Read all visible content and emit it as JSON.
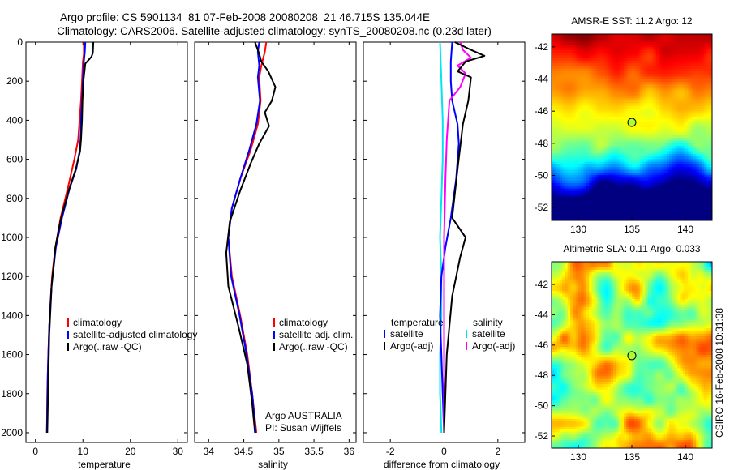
{
  "title": {
    "line1": "Argo profile: CS 5901134_81 07-Feb-2008 20080208_21 46.715S 135.044E",
    "line2": "Climatology: CARS2006. Satellite-adjusted climatology: synTS_20080208.nc (0.23d later)"
  },
  "credit": "CSIRO 16-Feb-2008 10:31:38",
  "colors": {
    "clim": "#ff0000",
    "sat": "#0000ff",
    "argo": "#000000",
    "cyan": "#00e5ee",
    "magenta": "#ff00ff"
  },
  "chart_data": [
    {
      "id": "temperature",
      "type": "line",
      "xlabel": "temperature",
      "ylabel": "",
      "xlim": [
        -2,
        32
      ],
      "ylim": [
        2050,
        0
      ],
      "xticks": [
        0,
        10,
        20,
        30
      ],
      "yticks": [
        0,
        200,
        400,
        600,
        800,
        1000,
        1200,
        1400,
        1600,
        1800,
        2000
      ],
      "legend": [
        "climatology",
        "satellite-adjusted climatology",
        "Argo(..raw -QC)"
      ],
      "series": [
        {
          "role": "clim",
          "x": [
            10.2,
            10.2,
            10.0,
            9.8,
            9.6,
            9.3,
            9.0,
            8.2,
            6.8,
            5.3,
            4.2,
            3.5,
            3.0,
            2.7,
            2.5,
            2.4
          ],
          "y": [
            0,
            60,
            100,
            200,
            300,
            400,
            500,
            600,
            750,
            900,
            1050,
            1200,
            1400,
            1600,
            1800,
            2000
          ]
        },
        {
          "role": "sat",
          "x": [
            10.5,
            10.4,
            10.2,
            10.0,
            9.8,
            9.6,
            9.5,
            9.3,
            8.6,
            7.2,
            5.6,
            4.3,
            3.4,
            2.9,
            2.6,
            2.4
          ],
          "y": [
            0,
            50,
            100,
            200,
            300,
            400,
            500,
            560,
            650,
            750,
            900,
            1050,
            1250,
            1450,
            1700,
            2000
          ]
        },
        {
          "role": "argo",
          "x": [
            12.2,
            12.1,
            11.8,
            10.5,
            10.1,
            9.9,
            9.8,
            9.6,
            9.4,
            8.5,
            7.0,
            5.4,
            4.2,
            3.4,
            2.9,
            2.5
          ],
          "y": [
            0,
            55,
            75,
            110,
            200,
            300,
            400,
            500,
            560,
            650,
            760,
            900,
            1050,
            1250,
            1500,
            2000
          ]
        }
      ]
    },
    {
      "id": "salinity",
      "type": "line",
      "xlabel": "salinity",
      "ylabel": "",
      "xlim": [
        33.8,
        36.1
      ],
      "ylim": [
        2050,
        0
      ],
      "xticks": [
        34,
        34.5,
        35,
        35.5,
        36
      ],
      "yticks": [],
      "legend": [
        "climatology",
        "satellite adj. clim.",
        "Argo(..raw -QC)"
      ],
      "annotation": [
        "Argo AUSTRALIA",
        "PI: Susan Wijffels"
      ],
      "series": [
        {
          "role": "clim",
          "x": [
            34.82,
            34.8,
            34.75,
            34.72,
            34.74,
            34.7,
            34.6,
            34.45,
            34.33,
            34.28,
            34.33,
            34.45,
            34.55,
            34.62,
            34.68
          ],
          "y": [
            0,
            50,
            120,
            180,
            300,
            420,
            550,
            700,
            850,
            1000,
            1200,
            1400,
            1600,
            1800,
            2000
          ]
        },
        {
          "role": "sat",
          "x": [
            34.72,
            34.7,
            34.72,
            34.7,
            34.73,
            34.68,
            34.58,
            34.45,
            34.33,
            34.28,
            34.32,
            34.44,
            34.54,
            34.62,
            34.67
          ],
          "y": [
            0,
            50,
            120,
            180,
            300,
            420,
            550,
            700,
            850,
            1000,
            1200,
            1400,
            1600,
            1800,
            2000
          ]
        },
        {
          "role": "argo",
          "x": [
            34.66,
            34.72,
            34.75,
            34.85,
            34.95,
            34.9,
            34.8,
            34.86,
            34.72,
            34.6,
            34.45,
            34.3,
            34.25,
            34.28,
            34.42,
            34.55,
            34.62,
            34.66
          ],
          "y": [
            0,
            60,
            100,
            150,
            230,
            300,
            360,
            430,
            520,
            620,
            760,
            920,
            1080,
            1250,
            1450,
            1650,
            1850,
            2000
          ]
        }
      ]
    },
    {
      "id": "difference",
      "type": "line",
      "xlabel": "difference from climatology",
      "ylabel": "",
      "xlim": [
        -3,
        3
      ],
      "ylim": [
        2050,
        0
      ],
      "xticks": [
        -2,
        0,
        2
      ],
      "yticks": [],
      "legend_left_header": "temperature",
      "legend_right_header": "salinity",
      "legend_left": [
        "satellite",
        "Argo(-adj)"
      ],
      "legend_right": [
        "satellite",
        "Argo(-adj)"
      ],
      "series": [
        {
          "role": "cyan",
          "x": [
            -0.15,
            -0.1,
            -0.05,
            -0.05,
            -0.1,
            -0.15,
            -0.1,
            -0.1,
            -0.15,
            -0.15,
            -0.12,
            -0.1
          ],
          "y": [
            0,
            200,
            400,
            600,
            800,
            1000,
            1200,
            1400,
            1600,
            1800,
            1900,
            2000
          ]
        },
        {
          "role": "sat",
          "x": [
            0.3,
            0.25,
            0.25,
            0.3,
            0.5,
            0.55,
            0.45,
            0.25,
            0.05,
            -0.1,
            -0.15,
            -0.1,
            -0.05,
            0.0
          ],
          "y": [
            0,
            100,
            200,
            300,
            420,
            520,
            700,
            900,
            1050,
            1200,
            1400,
            1600,
            1800,
            2000
          ]
        },
        {
          "role": "magenta",
          "x": [
            0.6,
            0.7,
            1.0,
            0.5,
            0.8,
            0.6,
            0.2,
            0.1,
            0.05,
            0.0,
            0.0,
            0.0
          ],
          "y": [
            0,
            40,
            80,
            120,
            160,
            230,
            300,
            500,
            700,
            1000,
            1400,
            2000
          ]
        },
        {
          "role": "argo",
          "x": [
            0.4,
            1.0,
            1.5,
            0.8,
            0.5,
            1.0,
            0.9,
            0.7,
            0.5,
            0.3,
            0.8,
            0.6,
            0.3,
            0.1,
            0.0
          ],
          "y": [
            0,
            40,
            70,
            100,
            150,
            180,
            300,
            420,
            650,
            900,
            1000,
            1100,
            1300,
            1600,
            2000
          ]
        }
      ]
    },
    {
      "id": "sst-map",
      "type": "heatmap",
      "title": "AMSR-E SST: 11.2 Argo: 12",
      "xlim": [
        127.5,
        142.5
      ],
      "ylim": [
        -52.8,
        -41.2
      ],
      "xticks": [
        130,
        135,
        140
      ],
      "yticks": [
        -42,
        -44,
        -46,
        -48,
        -50,
        -52
      ],
      "marker": {
        "x": 135.0,
        "y": -46.7
      }
    },
    {
      "id": "sla-map",
      "type": "heatmap",
      "title": "Altimetric SLA: 0.11 Argo: 0.033",
      "xlim": [
        127.5,
        142.5
      ],
      "ylim": [
        -52.8,
        -40.5
      ],
      "xticks": [
        130,
        135,
        140
      ],
      "yticks": [
        -42,
        -44,
        -46,
        -48,
        -50,
        -52
      ],
      "marker": {
        "x": 135.0,
        "y": -46.7
      }
    }
  ]
}
